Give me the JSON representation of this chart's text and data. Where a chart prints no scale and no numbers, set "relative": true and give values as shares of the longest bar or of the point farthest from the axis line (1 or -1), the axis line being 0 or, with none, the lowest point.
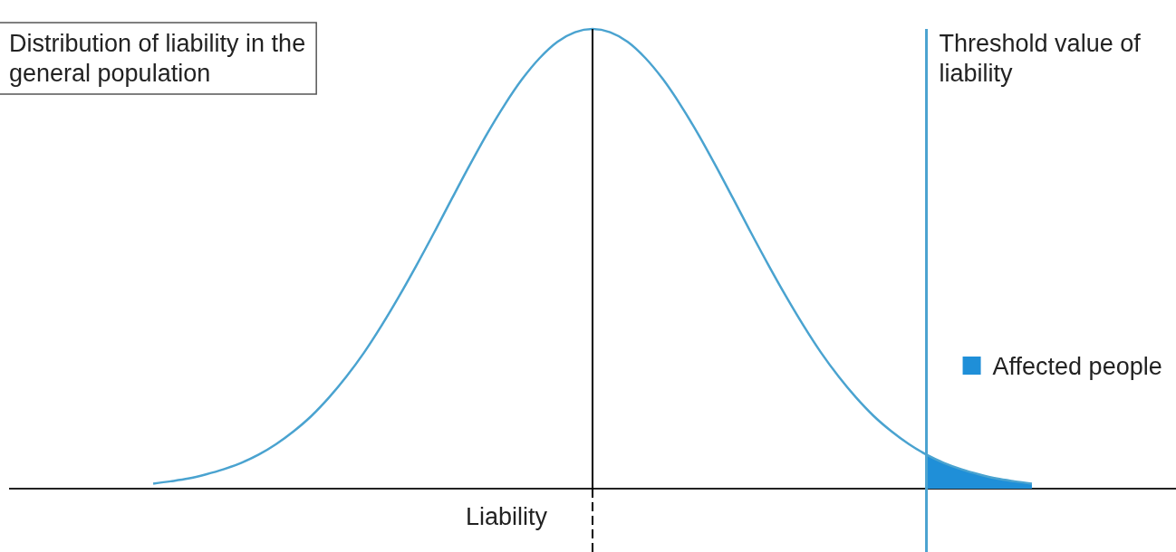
{
  "chart_data": {
    "type": "line",
    "relative": true,
    "xlabel": "Liability",
    "legend": "right",
    "categories": [
      null,
      null,
      null,
      null,
      null,
      null,
      null,
      null,
      null,
      null,
      null,
      null,
      null,
      null,
      null,
      null,
      null,
      null,
      null,
      null,
      null,
      null,
      null,
      null,
      null,
      null,
      null,
      null,
      null,
      null,
      null,
      null,
      null,
      null,
      null,
      null,
      null,
      null,
      null,
      null,
      null,
      null,
      null,
      null,
      null,
      null,
      null,
      null,
      null,
      null,
      null
    ],
    "series": [
      {
        "color": "#4aa3d0",
        "values": [
          0.011,
          0.016,
          0.022,
          0.031,
          0.042,
          0.056,
          0.074,
          0.097,
          0.125,
          0.158,
          0.198,
          0.244,
          0.296,
          0.355,
          0.419,
          0.487,
          0.558,
          0.631,
          0.703,
          0.772,
          0.835,
          0.891,
          0.937,
          0.972,
          0.993,
          1,
          0.993,
          0.972,
          0.937,
          0.891,
          0.835,
          0.772,
          0.703,
          0.631,
          0.558,
          0.487,
          0.419,
          0.355,
          0.296,
          0.244,
          0.198,
          0.158,
          0.125,
          0.097,
          0.074,
          0.056,
          0.042,
          0.031,
          0.022,
          0.016,
          0.011
        ]
      },
      {
        "type": "area",
        "name": "Affected people",
        "color": "#1f8fd8",
        "values": [
          null,
          null,
          null,
          null,
          null,
          null,
          null,
          null,
          null,
          null,
          null,
          null,
          null,
          null,
          null,
          null,
          null,
          null,
          null,
          null,
          null,
          null,
          null,
          null,
          null,
          null,
          null,
          null,
          null,
          null,
          null,
          null,
          null,
          null,
          null,
          null,
          null,
          null,
          null,
          null,
          null,
          null,
          null,
          null,
          0.074,
          0.056,
          0.042,
          0.031,
          0.022,
          0.016,
          0.011
        ]
      }
    ],
    "annotations": [
      "Distribution of liability in the general population",
      "Threshold value of liability"
    ]
  }
}
